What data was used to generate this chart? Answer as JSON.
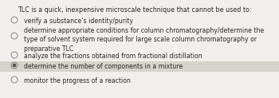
{
  "title": "TLC is a quick, inexpensive microscale technique that cannot be used to:",
  "options": [
    {
      "text": "verify a substance’s identity/purity",
      "selected": false,
      "highlighted": false,
      "lines": 1
    },
    {
      "text": "determine appropriate conditions for column chromatography/determine the\ntype of solvent system required for large scale column chromatography or\npreparative TLC",
      "selected": false,
      "highlighted": false,
      "lines": 3
    },
    {
      "text": "analyze the fractions obtained from fractional distillation",
      "selected": false,
      "highlighted": false,
      "lines": 1
    },
    {
      "text": "determine the number of components in a mixture",
      "selected": true,
      "highlighted": true,
      "lines": 1
    },
    {
      "text": "monitor the progress of a reaction",
      "selected": false,
      "highlighted": false,
      "lines": 1
    }
  ],
  "bg_color": "#f0efeb",
  "highlight_color": "#d4d4ca",
  "title_fontsize": 5.8,
  "option_fontsize": 5.6,
  "title_color": "#2a2a2a",
  "text_color": "#2a2a2a",
  "radio_color": "#888888",
  "radio_filled_color": "#555555",
  "figw": 3.5,
  "figh": 1.23,
  "dpi": 100
}
